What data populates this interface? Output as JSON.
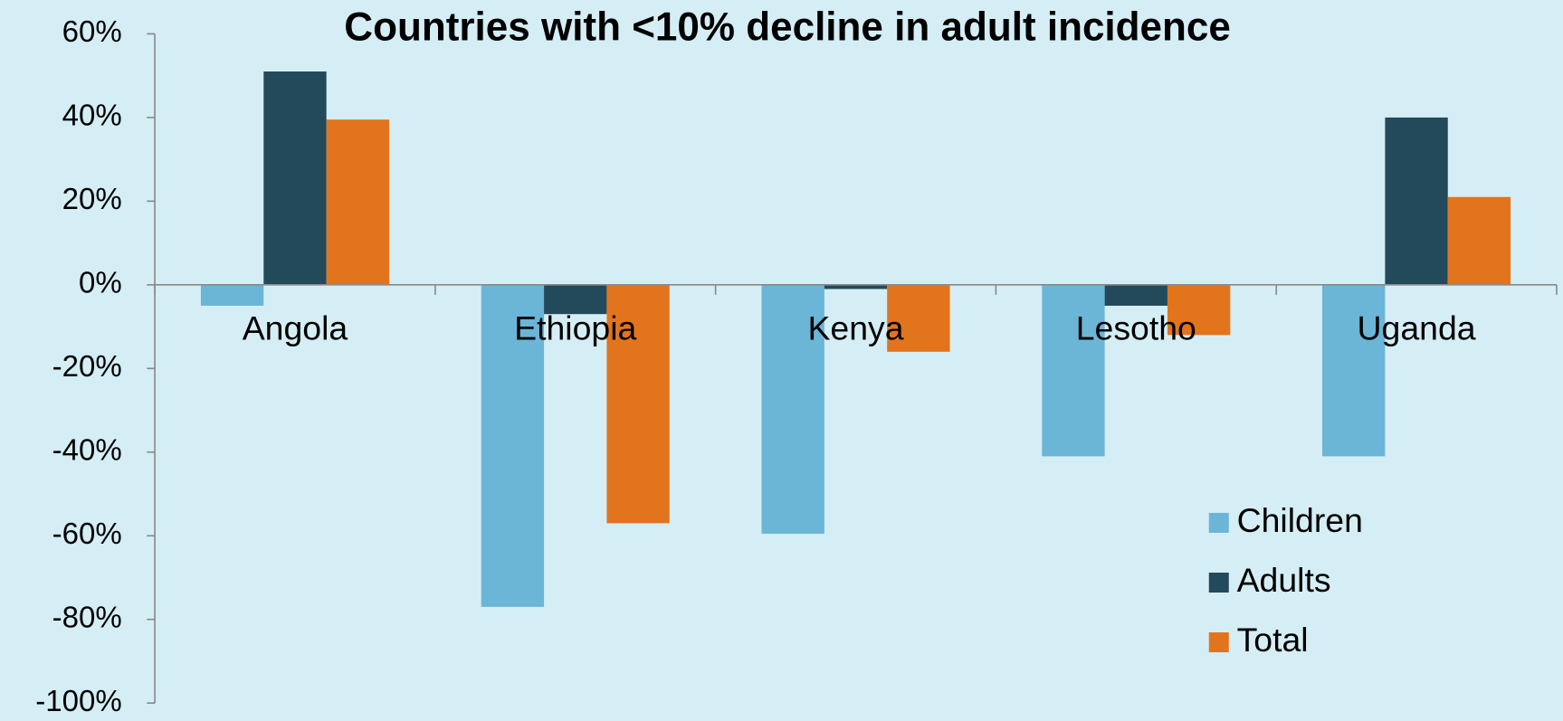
{
  "chart_data": {
    "type": "bar",
    "title": "Countries with <10% decline in adult incidence",
    "categories": [
      "Angola",
      "Ethiopia",
      "Kenya",
      "Lesotho",
      "Uganda"
    ],
    "series": [
      {
        "name": "Children",
        "color": "#6bb5d6",
        "values": [
          -5,
          -77,
          -59.5,
          -41,
          -41
        ]
      },
      {
        "name": "Adults",
        "color": "#234a5a",
        "values": [
          51,
          -7,
          -1,
          -5,
          40
        ]
      },
      {
        "name": "Total",
        "color": "#e3741e",
        "values": [
          39.5,
          -57,
          -16,
          -12,
          21
        ]
      }
    ],
    "ylim": [
      -100,
      60
    ],
    "yticks": [
      {
        "value": 60,
        "label": "60%"
      },
      {
        "value": 40,
        "label": "40%"
      },
      {
        "value": 20,
        "label": "20%"
      },
      {
        "value": 0,
        "label": "0%"
      },
      {
        "value": -20,
        "label": "-20%"
      },
      {
        "value": -40,
        "label": "-40%"
      },
      {
        "value": -60,
        "label": "-60%"
      },
      {
        "value": -80,
        "label": "-80%"
      },
      {
        "value": -100,
        "label": "-100%"
      }
    ],
    "legend": "bottom-right"
  }
}
